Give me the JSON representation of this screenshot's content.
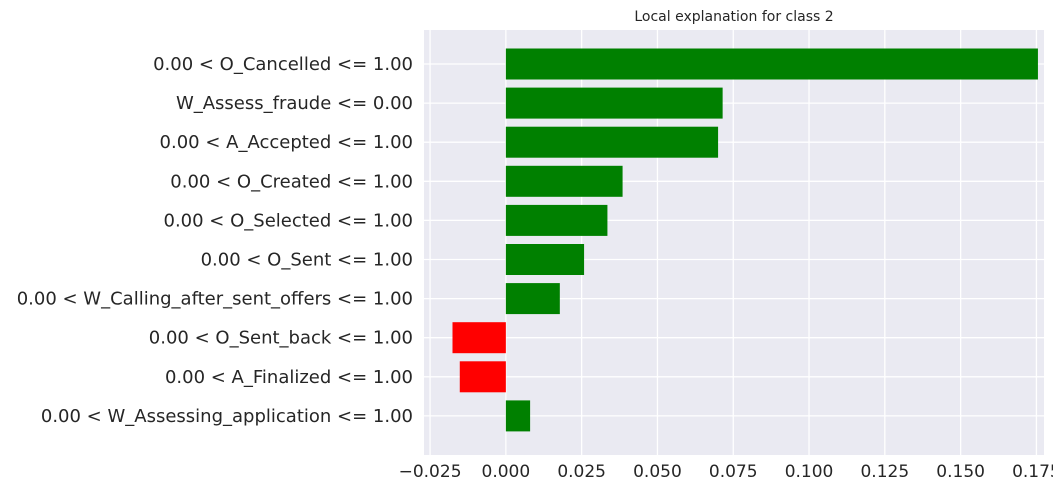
{
  "chart_data": {
    "type": "bar",
    "orientation": "horizontal",
    "title": "Local explanation for class 2",
    "xlabel": "",
    "ylabel": "",
    "xlim": [
      -0.027,
      0.1775
    ],
    "xticks": [
      "−0.025",
      "0.000",
      "0.025",
      "0.050",
      "0.075",
      "0.100",
      "0.125",
      "0.150",
      "0.175"
    ],
    "xtick_values": [
      -0.025,
      0.0,
      0.025,
      0.05,
      0.075,
      0.1,
      0.125,
      0.15,
      0.175
    ],
    "grid": true,
    "categories": [
      "0.00 < O_Cancelled <= 1.00",
      "W_Assess_fraude <= 0.00",
      "0.00 < A_Accepted <= 1.00",
      "0.00 < O_Created <= 1.00",
      "0.00 < O_Selected <= 1.00",
      "0.00 < O_Sent <= 1.00",
      "0.00 < W_Calling_after_sent_offers <= 1.00",
      "0.00 < O_Sent_back <= 1.00",
      "0.00 < A_Finalized <= 1.00",
      "0.00 < W_Assessing_application <= 1.00"
    ],
    "values": [
      0.1755,
      0.0715,
      0.07,
      0.0385,
      0.0335,
      0.0258,
      0.0178,
      -0.0176,
      -0.0152,
      0.008
    ],
    "colors": {
      "positive": "#008000",
      "negative": "#ff0000",
      "background": "#eaeaf2",
      "grid": "#ffffff"
    }
  }
}
